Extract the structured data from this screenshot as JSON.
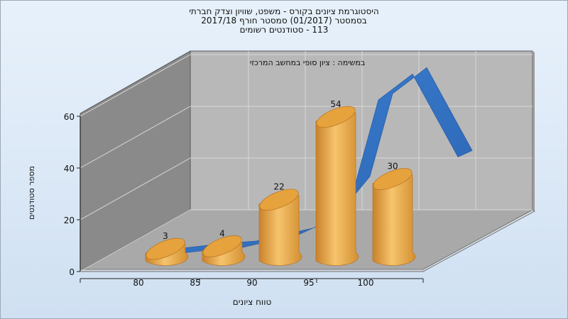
{
  "chart_data": {
    "type": "bar",
    "title_lines": [
      "היסטוגרמת ציונים בקורס - משפט, שוויון וצדק חברתי",
      "בסמסטר  (01/2017)  סמסטר חורף  2017/18",
      "113 - סטודנטים רשומים"
    ],
    "annotation": "במשימה : ציון סופי במחשב המרכזי",
    "xlabel": "טווח ציונים",
    "ylabel": "מספר סטודנטים",
    "categories": [
      "80",
      "85",
      "90",
      "95",
      "100"
    ],
    "values": [
      3,
      4,
      22,
      54,
      30
    ],
    "yticks": [
      0,
      20,
      40,
      60
    ],
    "ylim": [
      0,
      60
    ],
    "curve_x": [
      78,
      80,
      82,
      85,
      87,
      90,
      92,
      95,
      97,
      100,
      102,
      104
    ],
    "curve_y": [
      0,
      1,
      2,
      3,
      5,
      8,
      12,
      28,
      60,
      70,
      54,
      38
    ],
    "bar_color": "#e9a63a",
    "curve_color": "#2f6fc0",
    "grid": true
  }
}
